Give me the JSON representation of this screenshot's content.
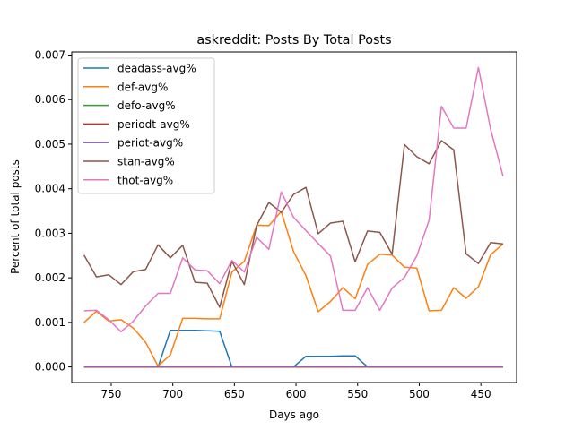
{
  "chart_data": {
    "type": "line",
    "title": "askreddit: Posts By Total Posts",
    "xlabel": "Days ago",
    "ylabel": "Percent of total posts",
    "x_inverted": true,
    "xlim": [
      782,
      421
    ],
    "ylim": [
      -0.00035,
      0.00707
    ],
    "xticks": [
      750,
      700,
      650,
      600,
      550,
      500,
      450
    ],
    "yticks": [
      0.0,
      0.001,
      0.002,
      0.003,
      0.004,
      0.005,
      0.006,
      0.007
    ],
    "ytick_labels": [
      "0.000",
      "0.001",
      "0.002",
      "0.003",
      "0.004",
      "0.005",
      "0.006",
      "0.007"
    ],
    "legend_position": "upper-left",
    "grid": false,
    "x": [
      772,
      762,
      752,
      742,
      732,
      722,
      712,
      702,
      692,
      682,
      672,
      662,
      652,
      642,
      632,
      622,
      612,
      602,
      592,
      582,
      572,
      562,
      552,
      542,
      532,
      522,
      512,
      502,
      492,
      482,
      472,
      462,
      452,
      442,
      432
    ],
    "series": [
      {
        "name": "deadass-avg%",
        "color": "#1f77b4",
        "values": [
          0,
          0,
          0,
          0,
          0,
          0,
          0,
          0.00082,
          0.00082,
          0.00082,
          0.00081,
          0.0008,
          0,
          0,
          0,
          0,
          0,
          0,
          0.00024,
          0.00024,
          0.00024,
          0.00025,
          0.00025,
          0,
          0,
          0,
          0,
          0,
          0,
          0,
          0,
          0,
          0,
          0,
          0
        ]
      },
      {
        "name": "def-avg%",
        "color": "#ff7f0e",
        "values": [
          0.001,
          0.00125,
          0.00103,
          0.00106,
          0.00087,
          0.00055,
          2e-05,
          0.00027,
          0.00109,
          0.00109,
          0.00108,
          0.00108,
          0.00213,
          0.00237,
          0.00318,
          0.00317,
          0.00349,
          0.00259,
          0.00205,
          0.00124,
          0.00147,
          0.00178,
          0.00153,
          0.0023,
          0.00253,
          0.00251,
          0.00224,
          0.00222,
          0.00126,
          0.00127,
          0.00178,
          0.00154,
          0.0018,
          0.00252,
          0.00276
        ]
      },
      {
        "name": "defo-avg%",
        "color": "#2ca02c",
        "values": [
          0,
          0,
          0,
          0,
          0,
          0,
          0,
          0,
          0,
          0,
          0,
          0,
          0,
          0,
          0,
          0,
          0,
          0,
          0,
          0,
          0,
          0,
          0,
          0,
          0,
          0,
          0,
          0,
          0,
          0,
          0,
          0,
          0,
          0,
          0
        ]
      },
      {
        "name": "periodt-avg%",
        "color": "#d62728",
        "values": [
          0,
          0,
          0,
          0,
          0,
          0,
          0,
          0,
          0,
          0,
          0,
          0,
          0,
          0,
          0,
          0,
          0,
          0,
          0,
          0,
          0,
          0,
          0,
          0,
          0,
          0,
          0,
          0,
          0,
          0,
          0,
          0,
          0,
          0,
          0
        ]
      },
      {
        "name": "periot-avg%",
        "color": "#9467bd",
        "values": [
          1e-05,
          1e-05,
          1e-05,
          1e-05,
          1e-05,
          1e-05,
          1e-05,
          1e-05,
          1e-05,
          1e-05,
          1e-05,
          1e-05,
          1e-05,
          1e-05,
          1e-05,
          1e-05,
          1e-05,
          1e-05,
          1e-05,
          1e-05,
          1e-05,
          1e-05,
          1e-05,
          1e-05,
          1e-05,
          1e-05,
          1e-05,
          1e-05,
          1e-05,
          1e-05,
          1e-05,
          1e-05,
          1e-05,
          1e-05,
          1e-05
        ]
      },
      {
        "name": "stan-avg%",
        "color": "#8c564b",
        "values": [
          0.00251,
          0.00202,
          0.00207,
          0.00185,
          0.00214,
          0.00219,
          0.00274,
          0.00245,
          0.00273,
          0.0019,
          0.00188,
          0.00134,
          0.00237,
          0.00185,
          0.00317,
          0.00369,
          0.00347,
          0.00387,
          0.00403,
          0.00299,
          0.00323,
          0.00327,
          0.00236,
          0.00305,
          0.00302,
          0.00253,
          0.00499,
          0.00472,
          0.00456,
          0.00508,
          0.00487,
          0.00254,
          0.00232,
          0.00279,
          0.00276
        ]
      },
      {
        "name": "thot-avg%",
        "color": "#e377c2",
        "values": [
          0.00126,
          0.00127,
          0.00106,
          0.00079,
          0.00103,
          0.00137,
          0.00165,
          0.00165,
          0.00245,
          0.00218,
          0.00216,
          0.00187,
          0.00239,
          0.00213,
          0.00291,
          0.00264,
          0.00393,
          0.00336,
          0.00306,
          0.00277,
          0.00249,
          0.00127,
          0.00127,
          0.00178,
          0.00127,
          0.00177,
          0.00201,
          0.00249,
          0.00329,
          0.00585,
          0.00536,
          0.00536,
          0.00672,
          0.00533,
          0.00428
        ]
      }
    ]
  }
}
